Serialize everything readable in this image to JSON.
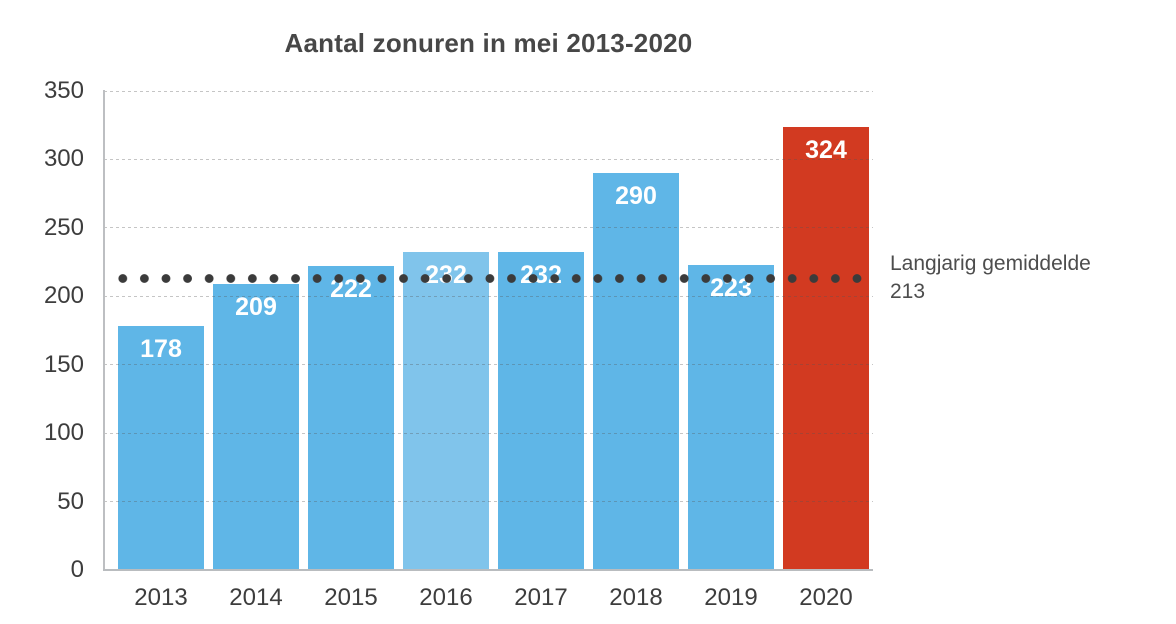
{
  "chart_data": {
    "type": "bar",
    "title": "Aantal zonuren in mei 2013-2020",
    "categories": [
      "2013",
      "2014",
      "2015",
      "2016",
      "2017",
      "2018",
      "2019",
      "2020"
    ],
    "values": [
      178,
      209,
      222,
      232,
      232,
      290,
      223,
      324
    ],
    "bar_colors": [
      "#5FB6E7",
      "#5FB6E7",
      "#5FB6E7",
      "#80C4EB",
      "#5FB6E7",
      "#5FB6E7",
      "#5FB6E7",
      "#D23A21"
    ],
    "value_label_color": "#FFFFFF",
    "xlabel": "",
    "ylabel": "",
    "ylim": [
      0,
      350
    ],
    "yticks": [
      0,
      50,
      100,
      150,
      200,
      250,
      300,
      350
    ],
    "grid": "horizontal-dashed",
    "legend": "none",
    "average_line": {
      "value": 213,
      "style": "dotted",
      "color": "#3B3B3B",
      "label_line1": "Langjarig gemiddelde",
      "label_line2": "213"
    }
  }
}
